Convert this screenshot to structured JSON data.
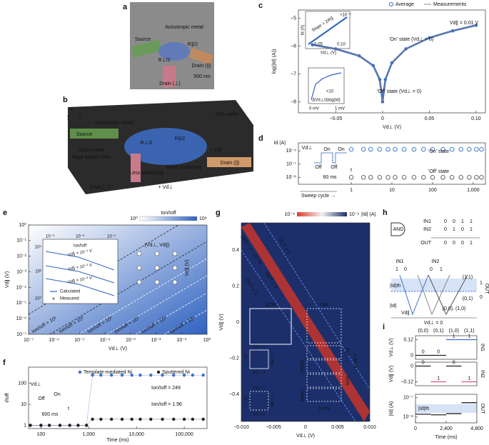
{
  "a": {
    "label": "a",
    "texts": [
      "Anisotropic metal",
      "Source",
      "Drain (||)",
      "Drain (⊥)",
      "R∥/2",
      "R⊥/2",
      "500 nm"
    ]
  },
  "b": {
    "label": "b",
    "texts": [
      "Anisotropic metal",
      "SiO₂ wafer",
      "Source",
      "Drain (||)",
      "Drain (⊥)",
      "R∥/2",
      "R⊥/2",
      "Grains with",
      "large aspect ratio",
      "Less scattering",
      "More scattering",
      "+ Vd∥",
      "+ Vd⊥",
      "z",
      "y",
      "x"
    ]
  },
  "c": {
    "label": "c",
    "xlabel": "Vd⊥ (V)",
    "ylabel": "log(|Id| (A))",
    "xlim": [
      -0.09,
      0.11
    ],
    "ylim": [
      -8.4,
      -4.7
    ],
    "xticks": [
      {
        "value": -0.05,
        "label": "−0.05"
      },
      0,
      0.05,
      {
        "value": 0.1,
        "label": "0.10"
      }
    ],
    "yticks": [
      {
        "value": -8,
        "label": "−8"
      },
      {
        "value": -7,
        "label": "−7"
      },
      {
        "value": -6,
        "label": "−6"
      },
      {
        "value": -5,
        "label": "−5"
      }
    ],
    "x": [
      -0.075,
      -0.05,
      -0.025,
      -0.01,
      -0.003,
      0,
      0.003,
      0.01,
      0.025,
      0.05,
      0.075,
      0.1
    ],
    "series": [
      {
        "name": "Average",
        "color": "#2f62c0",
        "values": [
          -5.95,
          -6.1,
          -6.35,
          -6.7,
          -7.2,
          -8,
          -7.2,
          -6.6,
          -6.1,
          -5.7,
          -5.45,
          -5.25
        ]
      },
      {
        "name": "Measurements",
        "color": "#8c8c8c",
        "values": [
          -5.95,
          -6.1,
          -6.35,
          -6.7,
          -7.2,
          -8,
          -7.2,
          -6.6,
          -6.1,
          -5.7,
          -5.45,
          -5.25
        ]
      }
    ],
    "texts": [
      "Vd∥ = 0.01 V",
      "'On' state (Vd⊥ > 0)",
      "'Off' state (Vd⊥ = 0)",
      "Slope = 2/R∥",
      "Id (A)",
      "Vd⊥ (V)",
      "×10⁻⁵",
      "0.05",
      "0.10",
      "0 mV",
      "1 mV",
      "×10",
      "ΔVd⊥/Δlog(Id)"
    ]
  },
  "d": {
    "label": "d",
    "xlabel": "Sweep cycle →",
    "ylabel": "Id (A)",
    "xlim": [
      0.05,
      2000
    ],
    "ylim": [
      3e-09,
      4e-06
    ],
    "xticks": [
      1,
      10,
      100,
      {
        "value": 1000,
        "label": "1,000"
      }
    ],
    "yticks": [
      {
        "value": 1e-08,
        "label": "10⁻⁸"
      },
      {
        "value": 1e-07,
        "label": "10⁻⁷"
      },
      {
        "value": 1e-06,
        "label": "10⁻⁶"
      }
    ],
    "x": [
      1,
      2,
      3,
      5,
      8,
      12,
      20,
      35,
      60,
      100,
      180,
      300,
      500,
      800,
      1200,
      1600
    ],
    "series": [
      {
        "name": "'On' state",
        "color": "#4a7fd4",
        "values": [
          1.3e-06,
          1.3e-06,
          1.3e-06,
          1.3e-06,
          1.3e-06,
          1.3e-06,
          1.3e-06,
          1.3e-06,
          1.3e-06,
          1.3e-06,
          1.3e-06,
          1.3e-06,
          1.3e-06,
          1.3e-06,
          1.3e-06,
          1.3e-06
        ]
      },
      {
        "name": "'Off' state",
        "color": "#666666",
        "values": [
          1e-08,
          1e-08,
          1e-08,
          1e-08,
          1e-08,
          1e-08,
          1e-08,
          1e-08,
          1e-08,
          1e-08,
          1e-08,
          1e-08,
          1e-08,
          1e-08,
          1e-08,
          1e-08
        ]
      }
    ],
    "texts": [
      "Vd⊥",
      "On",
      "On",
      "Off",
      "Off",
      "60 ms",
      "t"
    ]
  },
  "e": {
    "label": "e",
    "xlabel": "Vd⊥ (V)",
    "ylabel": "Vd∥ (V)",
    "xlim": [
      1e-07,
      1
    ],
    "ylim": [
      1e-07,
      1
    ],
    "xticks": [
      {
        "value": 1e-07,
        "label": "10⁻⁷"
      },
      {
        "value": 1e-06,
        "label": "10⁻⁶"
      },
      {
        "value": 1e-05,
        "label": "10⁻⁵"
      },
      {
        "value": 0.0001,
        "label": "10⁻⁴"
      },
      {
        "value": 0.001,
        "label": "10⁻³"
      },
      {
        "value": 0.01,
        "label": "10⁻²"
      },
      {
        "value": 0.1,
        "label": "10⁻¹"
      },
      {
        "value": 1,
        "label": "10⁰"
      }
    ],
    "yticks": [
      {
        "value": 1e-07,
        "label": "10⁻⁷"
      },
      {
        "value": 1e-06,
        "label": "10⁻⁶"
      },
      {
        "value": 1e-05,
        "label": "10⁻⁵"
      },
      {
        "value": 0.0001,
        "label": "10⁻⁴"
      },
      {
        "value": 0.001,
        "label": "10⁻³"
      },
      {
        "value": 0.01,
        "label": "10⁻²"
      },
      {
        "value": 0.1,
        "label": "10⁻¹"
      },
      {
        "value": 1,
        "label": "10⁰"
      }
    ],
    "colorbar": {
      "title": "Ion/Ioff",
      "min_label": "10⁰",
      "max_label": "10⁸"
    },
    "texts": [
      "Ion/Ioff = 10¹",
      "Ion/Ioff = 10²",
      "Ion/Ioff = 10³",
      "Ion/Ioff = 10⁴",
      "Ion/Ioff = 10⁵",
      "Ion/Ioff = 10⁶",
      "Ion/Ioff",
      "10⁻³",
      "10⁻²",
      "10⁻¹",
      "10⁴",
      "10²",
      "10⁰",
      "Vd∥ = 10⁻¹ V",
      "Vd∥ = 10⁻² V",
      "Vd∥ = 10⁻³ V",
      "Calculated",
      "Measured",
      "(Vd⊥, Vd∥)",
      "Vd∥ (V)"
    ]
  },
  "f": {
    "label": "f",
    "xlabel": "Time (ms)",
    "ylabel": "I/Ioff",
    "xlim": [
      55,
      300000
    ],
    "ylim": [
      0.7,
      600
    ],
    "xticks": [
      100,
      {
        "value": 1000,
        "label": "1,000"
      },
      {
        "value": 10000,
        "label": "10,000"
      },
      {
        "value": 100000,
        "label": "100,000"
      }
    ],
    "yticks": [
      1,
      10,
      100
    ],
    "x": [
      60,
      100,
      150,
      250,
      400,
      600,
      900,
      1200,
      1800,
      3000,
      5000,
      8000,
      12000,
      20000,
      35000,
      60000,
      100000,
      150000,
      250000
    ],
    "series": [
      {
        "name": "Template-mediated Ni",
        "color": "#3b6fd0",
        "values": [
          1,
          1,
          1,
          1,
          1,
          1,
          1,
          249,
          249,
          249,
          249,
          249,
          249,
          249,
          249,
          249,
          249,
          249,
          249
        ]
      },
      {
        "name": "Sputtered Ni",
        "color": "#222222",
        "values": [
          1,
          1,
          1,
          1,
          1,
          1,
          1,
          1.96,
          1.96,
          1.96,
          1.96,
          1.96,
          1.96,
          1.96,
          1.96,
          1.96,
          1.96,
          1.96,
          1.96
        ]
      }
    ],
    "texts": [
      "Ion/Ioff = 249",
      "Ion/Ioff = 1.96",
      "Vd⊥",
      "Off",
      "On",
      "600 ms",
      "t"
    ]
  },
  "g": {
    "label": "g",
    "xlabel": "Vd⊥ (V)",
    "ylabel": "Vd∥ (V)",
    "xlim": [
      -0.01,
      0.01
    ],
    "ylim": [
      -0.55,
      0.55
    ],
    "xticks": [
      {
        "value": -0.01,
        "label": "−0.010"
      },
      {
        "value": -0.005,
        "label": "−0.005"
      },
      0,
      {
        "value": 0.005,
        "label": "0.005"
      },
      {
        "value": 0.01,
        "label": "0.010"
      }
    ],
    "yticks": [
      {
        "value": -0.4,
        "label": "−0.4"
      },
      {
        "value": -0.2,
        "label": "−0.2"
      },
      0,
      0.2,
      0.4
    ],
    "colorbar": {
      "title": "|Id| (A)",
      "min_label": "10⁻⁹",
      "max_label": "10⁻⁶"
    },
    "texts": [
      "|Id|th = 4 × 10⁻⁸ A",
      "OUT = 1",
      "OUT = 0",
      "OUT = 1",
      "XOR",
      "OR",
      "AND",
      "XNOR",
      "NOR",
      "NAND",
      "0.24 V",
      "5 mV",
      "IN2 = 1",
      "IN2 = 0",
      "1 = IN1",
      "0 = IN1",
      "IN2 = 1",
      "IN2 = 0",
      "0 = IN1",
      "1 = IN1"
    ]
  },
  "h": {
    "label": "h",
    "gate": "AND",
    "table": {
      "rows": [
        [
          "IN1",
          "0",
          "0",
          "1",
          "1"
        ],
        [
          "IN2",
          "0",
          "1",
          "0",
          "1"
        ],
        [
          "OUT",
          "0",
          "0",
          "0",
          "1"
        ]
      ]
    },
    "texts": [
      "IN1",
      "IN2",
      "1",
      "0",
      "0",
      "1",
      "|Id|th",
      "|Id|",
      "Vd∥",
      "Vd⊥ = 0",
      "(1,1)",
      "(0,1)",
      "(0,0), (1,0)",
      "OUT",
      "1",
      "0"
    ]
  },
  "i": {
    "label": "i",
    "xlabel": "Time (ms)",
    "xlim": [
      0,
      4800
    ],
    "xticks": [
      0,
      {
        "value": 2400,
        "label": "2,400"
      },
      {
        "value": 4800,
        "label": "4,800"
      }
    ],
    "states": [
      "(0,0)",
      "(0,1)",
      "(1,0)",
      "(1,1)"
    ],
    "plots": [
      {
        "ylabel": "Vd⊥ (V)",
        "side": "IN1",
        "color": "#3b6fd0",
        "ylim": [
          -0.03,
          0.15
        ],
        "yticks": [
          0,
          {
            "value": 0.12,
            "label": "0.12"
          }
        ],
        "values": [
          0,
          0,
          0.12,
          0.12
        ],
        "digits": [
          "0",
          "0",
          "1",
          "1"
        ]
      },
      {
        "ylabel": "Vd∥ (V)",
        "side": "IN2",
        "color": "#d9567f",
        "ylim": [
          -0.15,
          0.03
        ],
        "yticks": [
          {
            "value": -0.12,
            "label": "−0.12"
          },
          0
        ],
        "values": [
          0,
          -0.12,
          0,
          -0.12
        ],
        "digits": [
          "0",
          "1",
          "0",
          "1"
        ]
      },
      {
        "ylabel": "|Id| (A)",
        "side": "OUT",
        "color": "#222222",
        "ylim": [
          5e-09,
          1.5e-07
        ],
        "yticks": [
          {
            "value": 1e-08,
            "label": "10⁻⁸"
          },
          {
            "value": 1e-07,
            "label": "10⁻⁷"
          }
        ],
        "values": [
          1.4e-08,
          1.3e-08,
          1.5e-08,
          5.5e-08
        ],
        "threshold_label": "|Id|th"
      }
    ]
  }
}
